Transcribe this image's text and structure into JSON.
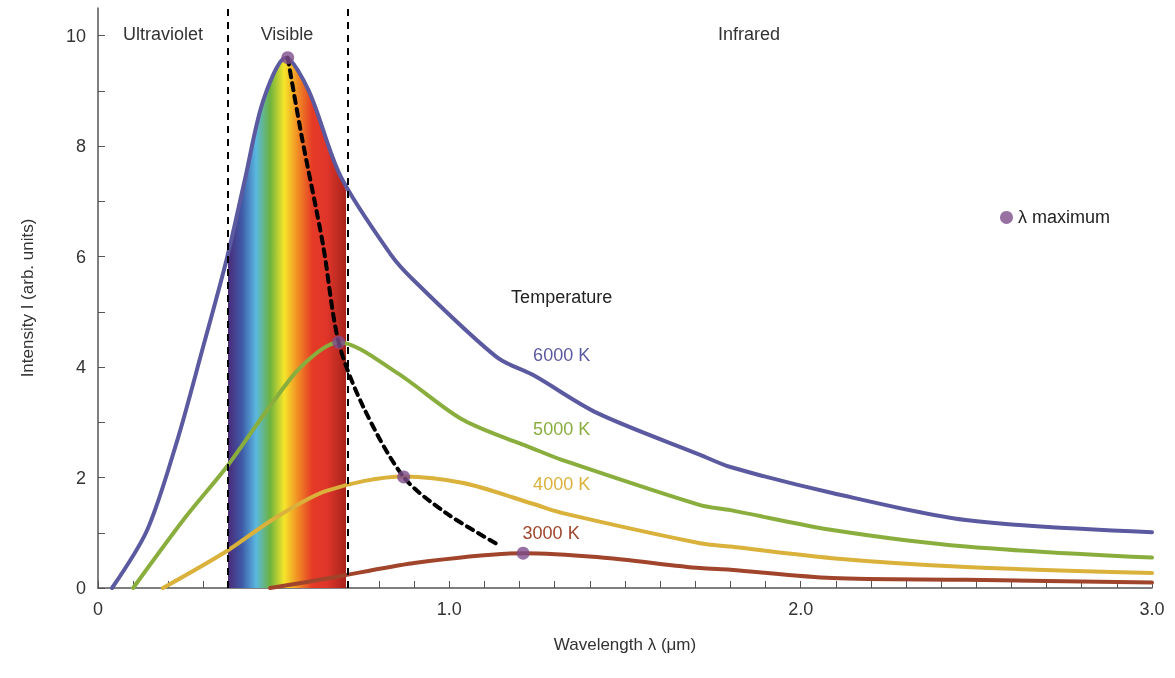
{
  "chart_data": {
    "type": "line",
    "xlabel": "Wavelength λ (μm)",
    "ylabel": "Intensity I (arb. units)",
    "legend_title": "Temperature",
    "xlim": [
      0,
      3
    ],
    "ylim": [
      0,
      10.5
    ],
    "xticks": [
      0,
      {
        "value": 0.1,
        "label": null
      },
      {
        "value": 0.2,
        "label": null
      },
      {
        "value": 0.3,
        "label": null
      },
      {
        "value": 0.4,
        "label": null
      },
      {
        "value": 0.5,
        "label": null
      },
      {
        "value": 0.6,
        "label": null
      },
      {
        "value": 0.7,
        "label": null
      },
      {
        "value": 0.8,
        "label": null
      },
      {
        "value": 0.9,
        "label": null
      },
      {
        "value": 1,
        "label": "1.0"
      },
      {
        "value": 1.1,
        "label": null
      },
      {
        "value": 1.2,
        "label": null
      },
      {
        "value": 1.3,
        "label": null
      },
      {
        "value": 1.4,
        "label": null
      },
      {
        "value": 1.5,
        "label": null
      },
      {
        "value": 1.6,
        "label": null
      },
      {
        "value": 1.7,
        "label": null
      },
      {
        "value": 1.8,
        "label": null
      },
      {
        "value": 1.9,
        "label": null
      },
      {
        "value": 2,
        "label": "2.0"
      },
      {
        "value": 2.1,
        "label": null
      },
      {
        "value": 2.2,
        "label": null
      },
      {
        "value": 2.3,
        "label": null
      },
      {
        "value": 2.4,
        "label": null
      },
      {
        "value": 2.5,
        "label": null
      },
      {
        "value": 2.6,
        "label": null
      },
      {
        "value": 2.7,
        "label": null
      },
      {
        "value": 2.8,
        "label": null
      },
      {
        "value": 2.9,
        "label": null
      },
      {
        "value": 3,
        "label": "3.0"
      }
    ],
    "yticks": [
      0,
      {
        "value": 1,
        "label": null
      },
      2,
      {
        "value": 3,
        "label": null
      },
      4,
      {
        "value": 5,
        "label": null
      },
      6,
      {
        "value": 7,
        "label": null
      },
      8,
      {
        "value": 9,
        "label": null
      },
      10
    ],
    "grid": false,
    "legend": "right",
    "marker": "none",
    "line_style": "solid",
    "series": [
      {
        "type": "area",
        "colors": [
          "#4b2a78",
          "#3e5aa8",
          "#5ab8e0",
          "#6db33f",
          "#f5e52a",
          "#f08a24",
          "#e53a26",
          "#e0362a",
          "#a8231c"
        ],
        "x": [
          0.37,
          0.41,
          0.45,
          0.49,
          0.53,
          0.57,
          0.61,
          0.65,
          0.706
        ],
        "values": [
          6.0,
          7.2,
          8.3,
          9.2,
          9.58,
          9.4,
          8.85,
          8.1,
          7.2
        ]
      },
      {
        "name": "6000 K",
        "color": "#5b5aa0",
        "x": [
          0.04,
          0.14,
          0.225,
          0.296,
          0.367,
          0.418,
          0.47,
          0.535,
          0.6,
          0.69,
          0.834,
          0.897,
          1.135,
          1.24,
          1.42,
          1.714,
          1.8,
          2.09,
          2.47,
          3.0
        ],
        "values": [
          0,
          1.05,
          2.66,
          4.29,
          5.97,
          7.39,
          8.82,
          9.6,
          9.0,
          7.46,
          6.03,
          5.58,
          4.18,
          3.85,
          3.17,
          2.41,
          2.19,
          1.72,
          1.23,
          1.01
        ]
      },
      {
        "name": "5000 K",
        "color": "#8aae3e",
        "x": [
          0.1,
          0.245,
          0.367,
          0.478,
          0.58,
          0.685,
          0.85,
          1.04,
          1.24,
          1.32,
          1.714,
          1.8,
          2.09,
          2.47,
          3.0
        ],
        "values": [
          0,
          1.25,
          2.2,
          3.19,
          4.02,
          4.45,
          3.9,
          3.04,
          2.52,
          2.32,
          1.5,
          1.41,
          1.05,
          0.75,
          0.55
        ]
      },
      {
        "name": "4000 K",
        "color": "#d9b13b",
        "x": [
          0.185,
          0.367,
          0.5,
          0.65,
          0.87,
          1.04,
          1.24,
          1.32,
          1.714,
          1.8,
          2.09,
          2.47,
          3.0
        ],
        "values": [
          0,
          0.67,
          1.25,
          1.76,
          2.02,
          1.9,
          1.52,
          1.36,
          0.81,
          0.75,
          0.54,
          0.38,
          0.27
        ]
      },
      {
        "name": "3000 K",
        "color": "#a0452c",
        "x": [
          0.49,
          0.66,
          0.897,
          1.21,
          1.42,
          1.714,
          1.8,
          2.09,
          2.47,
          3.0
        ],
        "values": [
          0,
          0.18,
          0.45,
          0.63,
          0.56,
          0.36,
          0.33,
          0.18,
          0.15,
          0.1
        ]
      },
      {
        "color": "#000000",
        "line_style": "dashed",
        "x": [
          0.54,
          0.58,
          0.64,
          0.685,
          0.755,
          0.87,
          0.99,
          1.14
        ],
        "values": [
          9.6,
          8.17,
          6.23,
          4.45,
          3.28,
          2.01,
          1.36,
          0.78
        ]
      },
      {
        "name": "λ maximum",
        "type": "scatter",
        "marker": "circle",
        "color": "#7e4e8c",
        "x": [
          0.54,
          0.685,
          0.87,
          1.21
        ],
        "values": [
          9.6,
          4.45,
          2.01,
          0.63
        ]
      }
    ],
    "ref_lines": [
      {
        "axis": "x",
        "value": 0.37,
        "color": "#000000",
        "line_style": "dashed"
      },
      {
        "axis": "x",
        "value": 0.706,
        "color": "#000000",
        "line_style": "dashed"
      }
    ],
    "annotations": [
      "Ultraviolet",
      "Visible",
      "Infrared"
    ]
  }
}
